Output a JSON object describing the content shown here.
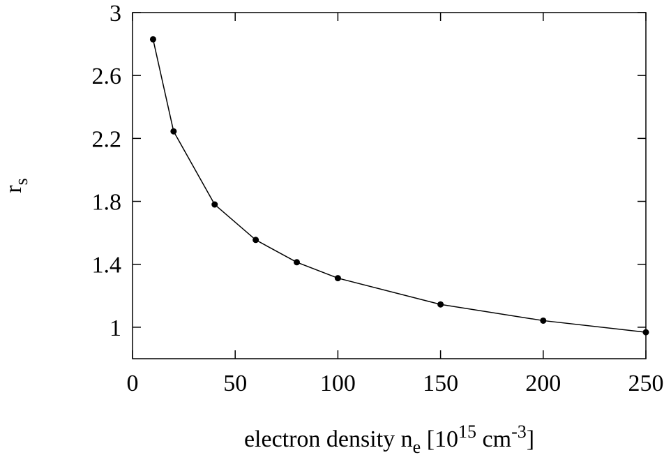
{
  "chart_data": {
    "type": "line",
    "xlabel": {
      "main": "electron density n",
      "sub": "e",
      "bracket_open": " [10",
      "sup1": "15",
      "unit": " cm",
      "sup2": "-3",
      "bracket_close": "]"
    },
    "ylabel": {
      "main": "r",
      "sub": "s"
    },
    "xlim": [
      0,
      250
    ],
    "ylim": [
      0.8,
      3.0
    ],
    "x_ticks": [
      0,
      50,
      100,
      150,
      200,
      250
    ],
    "x_tick_labels": [
      "0",
      "50",
      "100",
      "150",
      "200",
      "250"
    ],
    "y_ticks": [
      1.0,
      1.4,
      1.8,
      2.2,
      2.6,
      3.0
    ],
    "y_tick_labels": [
      "1",
      "1.4",
      "1.8",
      "2.2",
      "2.6",
      "3"
    ],
    "grid": false,
    "series": [
      {
        "x": [
          10,
          20,
          40,
          60,
          80,
          100,
          150,
          200,
          250
        ],
        "y": [
          2.83,
          2.245,
          1.78,
          1.555,
          1.413,
          1.312,
          1.145,
          1.042,
          0.968
        ]
      }
    ]
  }
}
